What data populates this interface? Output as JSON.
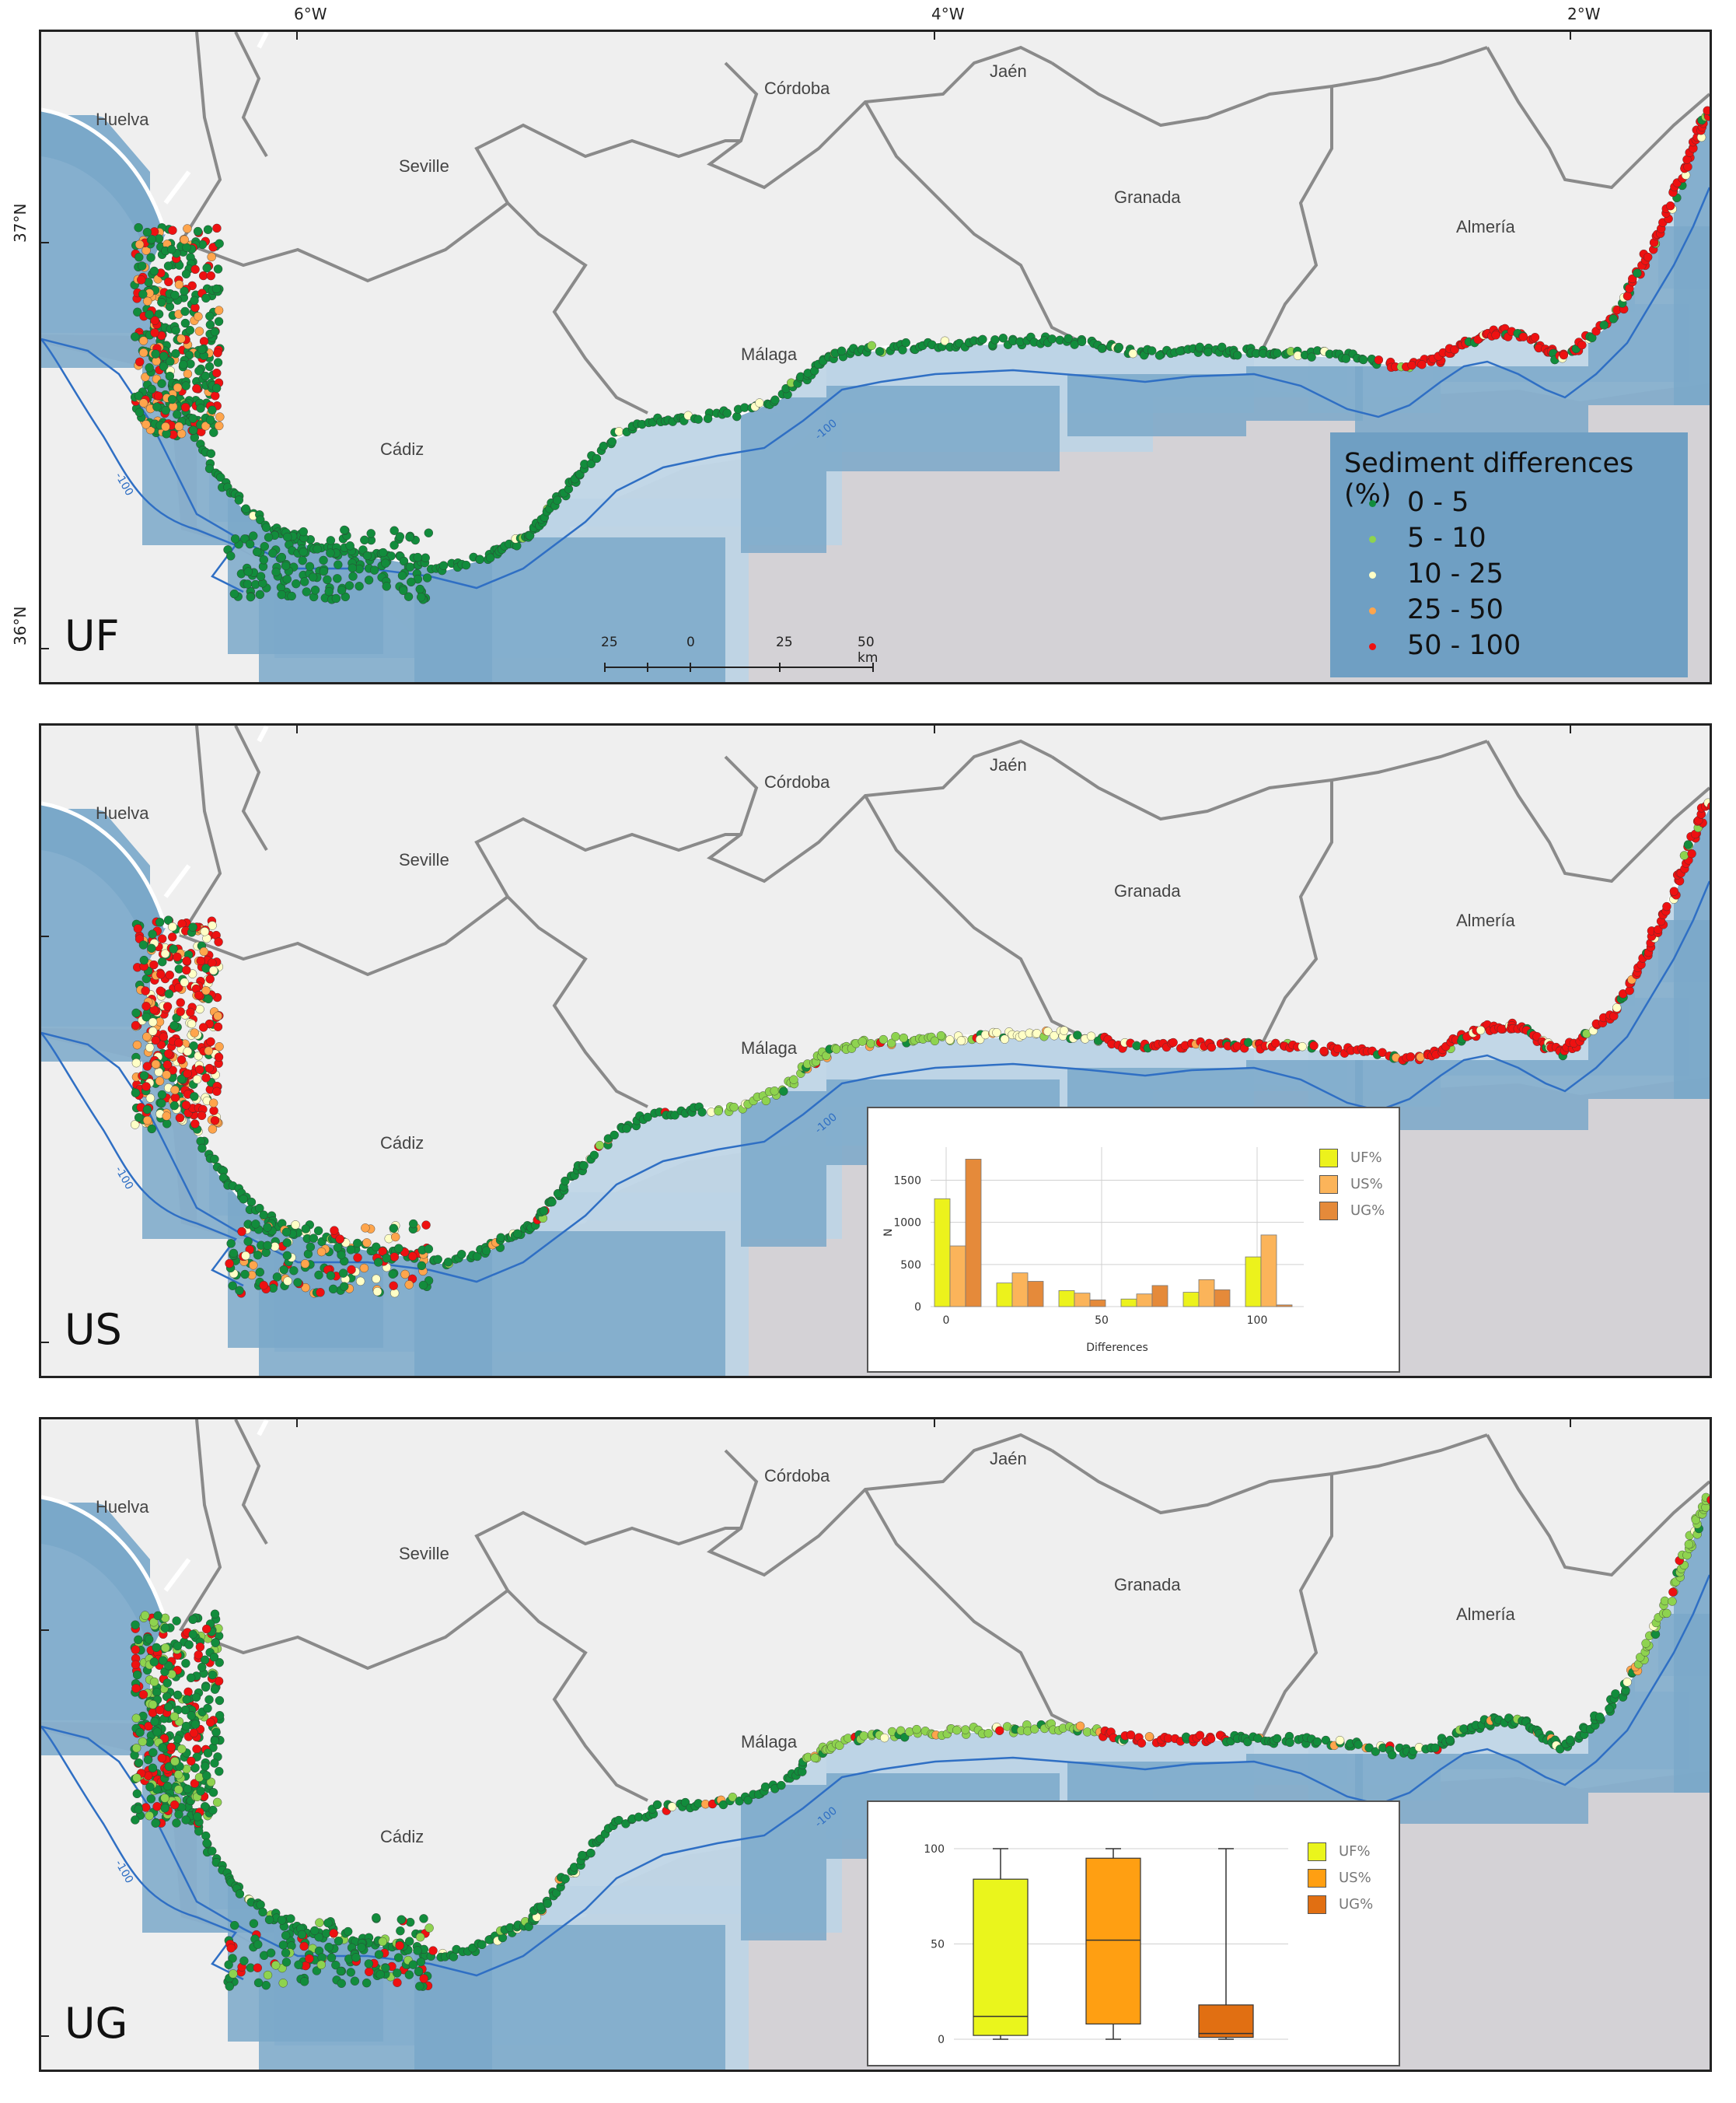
{
  "axis": {
    "lon": [
      "6°W",
      "4°W",
      "2°W"
    ],
    "lat": [
      "37°N",
      "36°N"
    ]
  },
  "map_labels": {
    "places": [
      "Huelva",
      "Seville",
      "Córdoba",
      "Jaén",
      "Granada",
      "Almería",
      "Málaga",
      "Cádiz"
    ],
    "isobath": "-100"
  },
  "legend": {
    "title": "Sediment differences (%)",
    "classes": [
      {
        "label": "0 - 5",
        "color": "#128c3c"
      },
      {
        "label": "5 - 10",
        "color": "#8ed34f"
      },
      {
        "label": "10 - 25",
        "color": "#ffffc6"
      },
      {
        "label": "25 - 50",
        "color": "#ffa54c"
      },
      {
        "label": "50 - 100",
        "color": "#ee1111"
      }
    ]
  },
  "scalebar": {
    "labels": [
      "25",
      "0",
      "25",
      "50 km"
    ]
  },
  "panels": [
    {
      "id": "UF"
    },
    {
      "id": "US"
    },
    {
      "id": "UG"
    }
  ],
  "colors": {
    "land": "#efefef",
    "shelf_light": "#bcd4e6",
    "shelf_dark": "#7aa8c9",
    "deep": "#d4d2d6",
    "isobath": "#2f6fc4",
    "border": "#8a8a8a"
  },
  "chart_data": [
    {
      "type": "bar",
      "ylabel": "N",
      "xlabel": "Differences",
      "xticks": [
        "0",
        "50",
        "100"
      ],
      "yticks": [
        "0",
        "500",
        "1000",
        "1500"
      ],
      "ylim": [
        0,
        1800
      ],
      "categories": [
        "0",
        "20",
        "40",
        "60",
        "80",
        "100"
      ],
      "series": [
        {
          "name": "UF%",
          "color": "#ecf21c",
          "values": [
            1280,
            280,
            190,
            90,
            170,
            590
          ]
        },
        {
          "name": "US%",
          "color": "#fbb45a",
          "values": [
            720,
            400,
            160,
            150,
            320,
            850
          ]
        },
        {
          "name": "UG%",
          "color": "#e58a3a",
          "values": [
            1750,
            300,
            80,
            250,
            200,
            20
          ]
        }
      ],
      "grid": true,
      "legend": "right"
    },
    {
      "type": "box",
      "yticks": [
        "0",
        "50",
        "100"
      ],
      "ylim": [
        0,
        100
      ],
      "series": [
        {
          "name": "UF%",
          "color": "#eaf51c",
          "min": 0,
          "q1": 2,
          "median": 12,
          "q3": 84,
          "max": 100
        },
        {
          "name": "US%",
          "color": "#ff9f12",
          "min": 0,
          "q1": 8,
          "median": 52,
          "q3": 95,
          "max": 100
        },
        {
          "name": "UG%",
          "color": "#e16f12",
          "min": 0,
          "q1": 1,
          "median": 3,
          "q3": 18,
          "max": 100
        }
      ],
      "grid": true,
      "legend": "right"
    }
  ]
}
